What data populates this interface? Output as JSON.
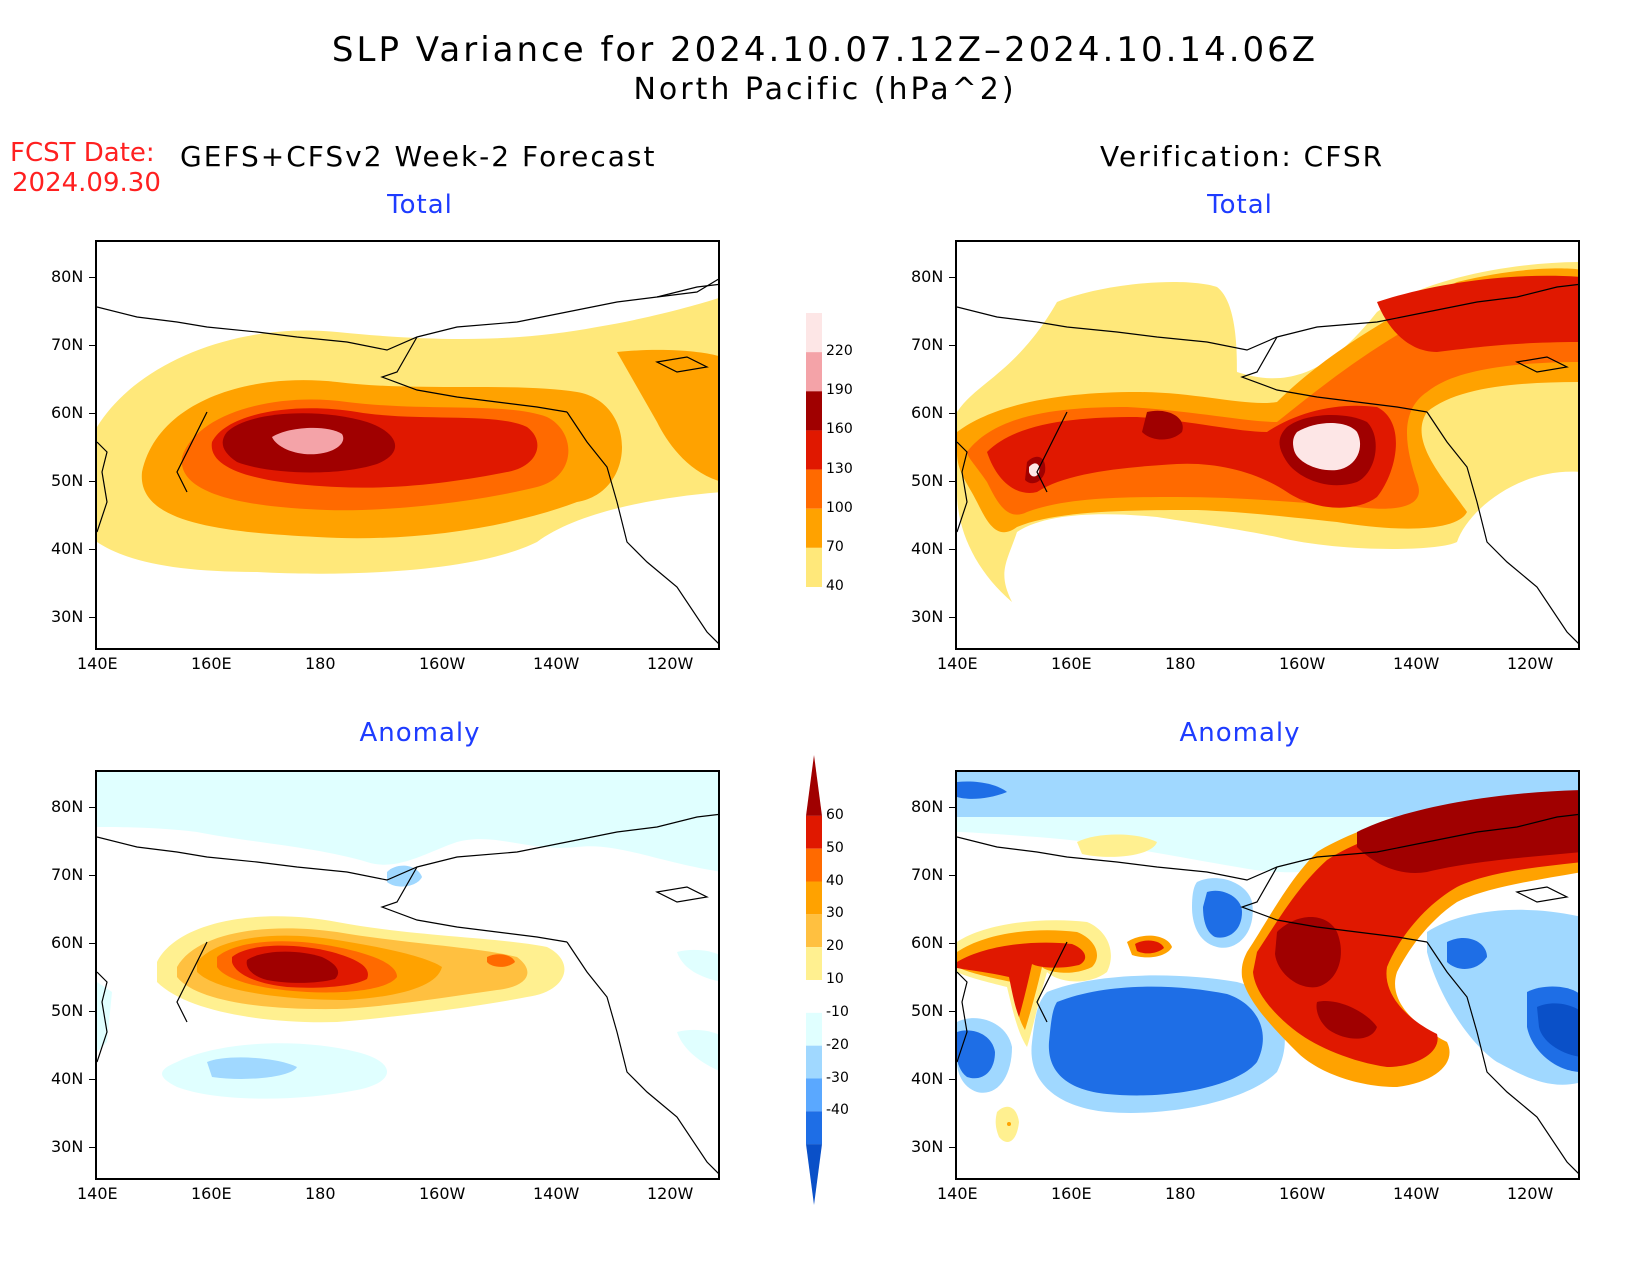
{
  "title": {
    "line1": "SLP Variance for 2024.10.07.12Z–2024.10.14.06Z",
    "line2": "North Pacific (hPa^2)"
  },
  "fcst": {
    "label": "FCST Date:",
    "date": "2024.09.30"
  },
  "left_header": "GEFS+CFSv2 Week-2 Forecast",
  "right_header": "Verification: CFSR",
  "subtitles": {
    "total": "Total",
    "anomaly": "Anomaly"
  },
  "axes": {
    "lat_ticks": [
      "80N",
      "70N",
      "60N",
      "50N",
      "40N",
      "30N"
    ],
    "lon_ticks": [
      "140E",
      "160E",
      "180",
      "160W",
      "140W",
      "120W"
    ]
  },
  "colorbar_total": {
    "levels": [
      "220",
      "190",
      "160",
      "130",
      "100",
      "70",
      "40"
    ],
    "colors": [
      "#fde6e6",
      "#f4a3a8",
      "#a00000",
      "#e01800",
      "#ff6a00",
      "#ffa200",
      "#ffe87a"
    ]
  },
  "colorbar_anomaly": {
    "levels": [
      "60",
      "50",
      "40",
      "30",
      "20",
      "10",
      "-10",
      "-20",
      "-30",
      "-40"
    ],
    "colors": [
      "#a00000",
      "#e01800",
      "#ff6a00",
      "#ffa200",
      "#ffc040",
      "#fff090",
      "#ffffff",
      "#e0ffff",
      "#a0d8ff",
      "#5aa8ff",
      "#1e6ee6",
      "#0a50c8"
    ]
  },
  "colors": {
    "land_line": "#000000",
    "title_red": "#ff2020",
    "subtitle_blue": "#1e3cff"
  }
}
